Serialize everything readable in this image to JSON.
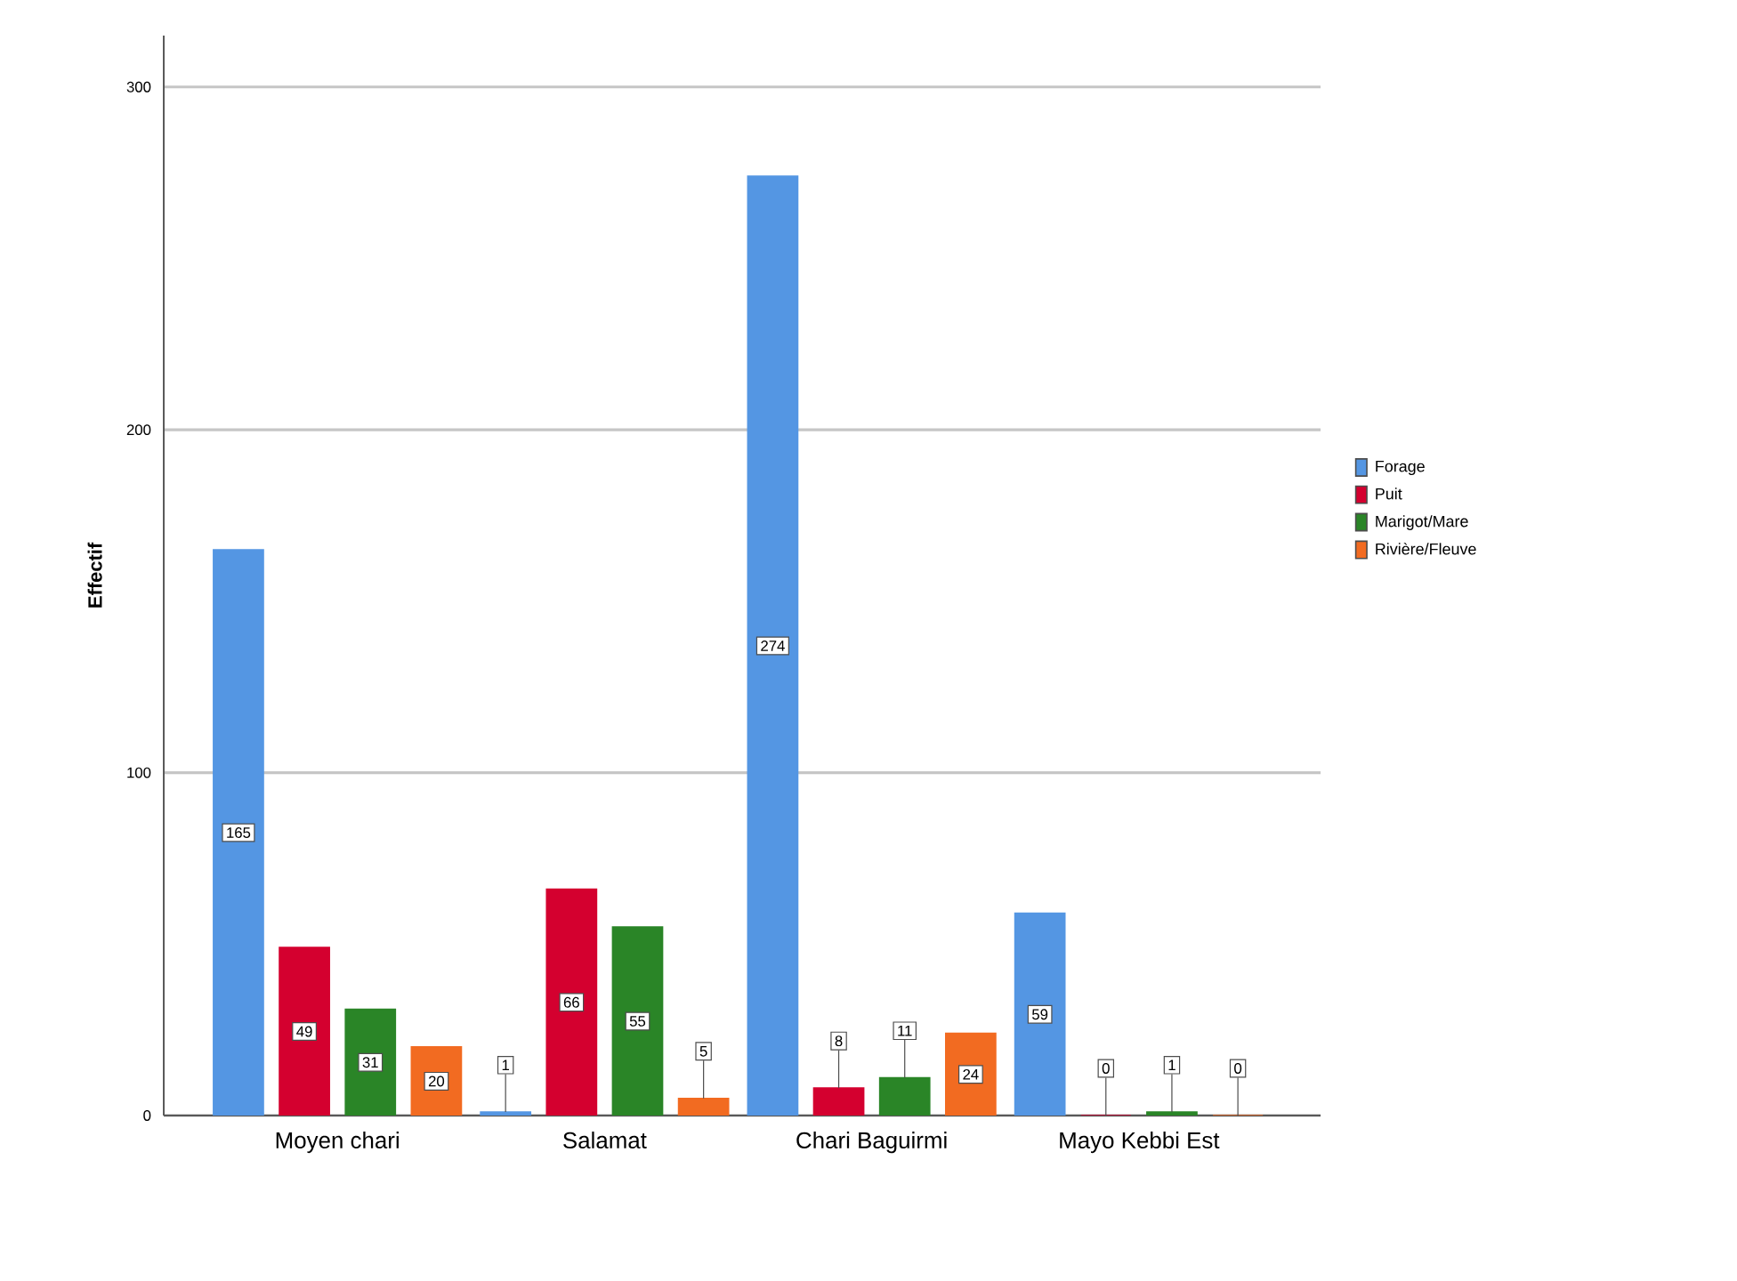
{
  "chart_data": {
    "type": "bar",
    "ylabel": "Effectif",
    "categories": [
      "Moyen chari",
      "Salamat",
      "Chari Baguirmi",
      "Mayo Kebbi Est"
    ],
    "series": [
      {
        "name": "Forage",
        "color": "#5496e3",
        "values": [
          165,
          1,
          274,
          59
        ]
      },
      {
        "name": "Puit",
        "color": "#d4002f",
        "values": [
          49,
          66,
          8,
          0
        ]
      },
      {
        "name": "Marigot/Mare",
        "color": "#2a8527",
        "values": [
          31,
          55,
          11,
          1
        ]
      },
      {
        "name": "Rivière/Fleuve",
        "color": "#f26b21",
        "values": [
          20,
          5,
          24,
          0
        ]
      }
    ],
    "ylim": [
      0,
      315
    ],
    "yticks": [
      0,
      100,
      200,
      300
    ],
    "grid": "y",
    "legend": "right",
    "data_labels": true
  }
}
